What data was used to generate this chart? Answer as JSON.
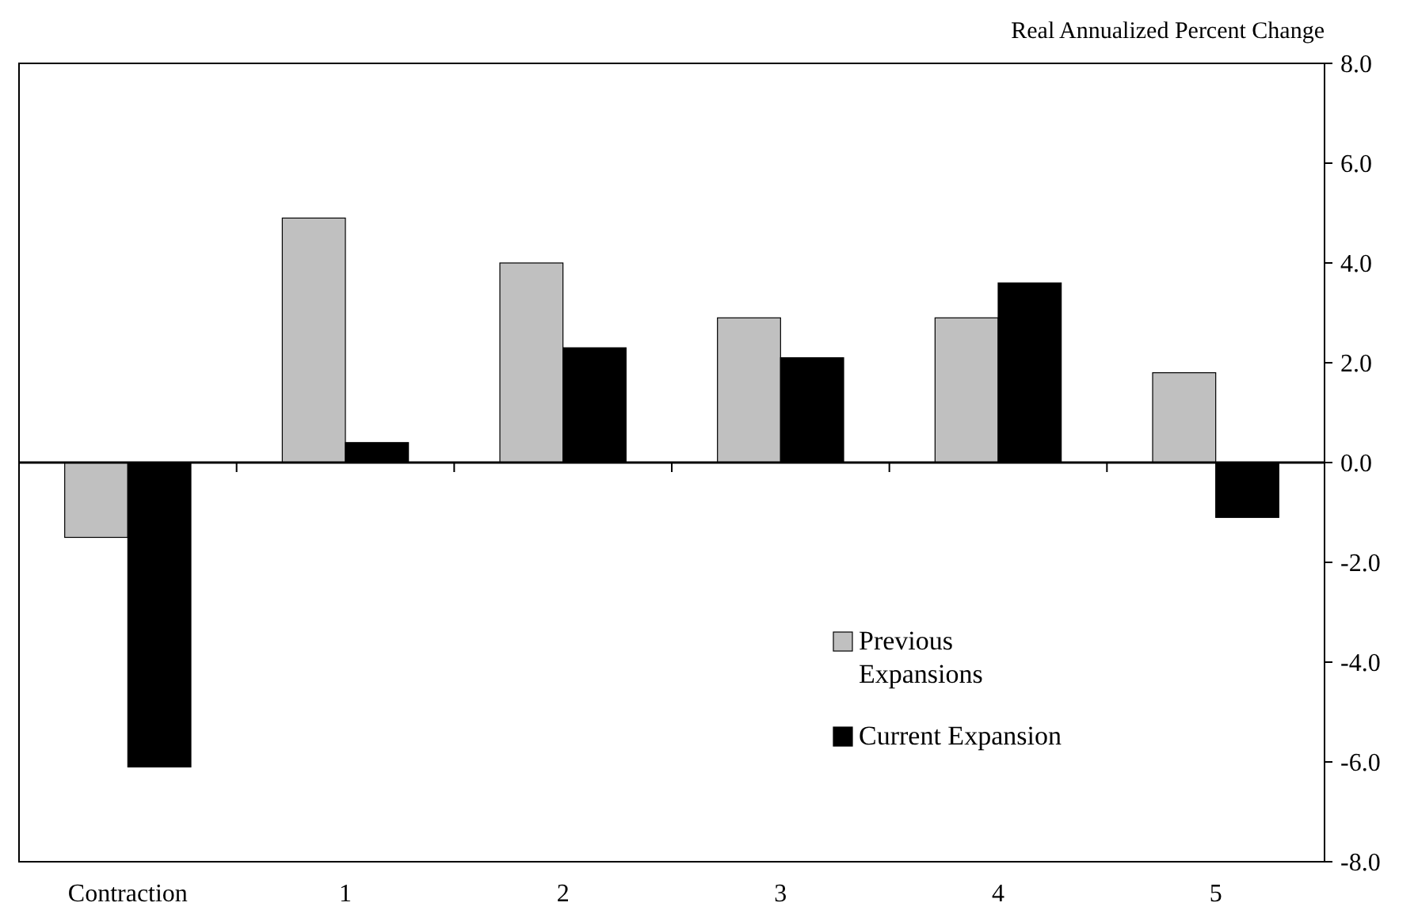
{
  "chart_data": {
    "type": "bar",
    "ylabel": "Real Annualized Percent Change",
    "categories": [
      "Contraction",
      "1",
      "2",
      "3",
      "4",
      "5"
    ],
    "series": [
      {
        "name": "Previous Expansions",
        "color": "#c0c0c0",
        "values": [
          -1.5,
          4.9,
          4.0,
          2.9,
          2.9,
          1.8
        ]
      },
      {
        "name": "Current Expansion",
        "color": "#000000",
        "values": [
          -6.1,
          0.4,
          2.3,
          2.1,
          3.6,
          -1.1
        ]
      }
    ],
    "ylim": [
      -8,
      8
    ],
    "yticks": [
      {
        "value": -8,
        "label": "-8.0"
      },
      {
        "value": -6,
        "label": "-6.0"
      },
      {
        "value": -4,
        "label": "-4.0"
      },
      {
        "value": -2,
        "label": "-2.0"
      },
      {
        "value": 0,
        "label": "0.0"
      },
      {
        "value": 2,
        "label": "2.0"
      },
      {
        "value": 4,
        "label": "4.0"
      },
      {
        "value": 6,
        "label": "6.0"
      },
      {
        "value": 8,
        "label": "8.0"
      }
    ],
    "legend": "bottom right"
  }
}
